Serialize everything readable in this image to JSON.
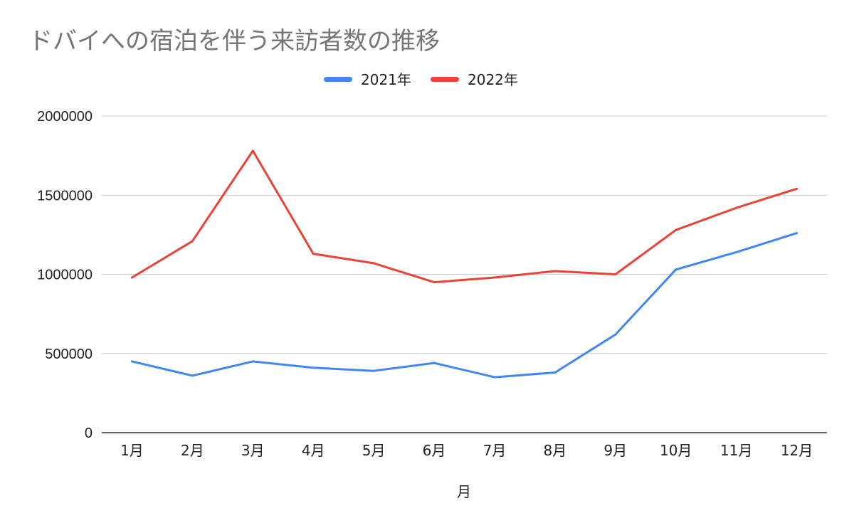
{
  "chart_data": {
    "type": "line",
    "title": "ドバイへの宿泊を伴う来訪者数の推移",
    "xlabel": "月",
    "ylabel": "",
    "categories": [
      "1月",
      "2月",
      "3月",
      "4月",
      "5月",
      "6月",
      "7月",
      "8月",
      "9月",
      "10月",
      "11月",
      "12月"
    ],
    "yticks": [
      "0",
      "500000",
      "1000000",
      "1500000",
      "2000000"
    ],
    "ylim": [
      0,
      2000000
    ],
    "grid": true,
    "legend_position": "top",
    "series": [
      {
        "name": "2021年",
        "color": "#4285f4",
        "values": [
          450000,
          360000,
          450000,
          410000,
          390000,
          440000,
          350000,
          380000,
          620000,
          1030000,
          1140000,
          1260000
        ]
      },
      {
        "name": "2022年",
        "color": "#ea4335",
        "values": [
          980000,
          1210000,
          1780000,
          1130000,
          1070000,
          950000,
          980000,
          1020000,
          1000000,
          1280000,
          1420000,
          1540000
        ]
      }
    ]
  }
}
